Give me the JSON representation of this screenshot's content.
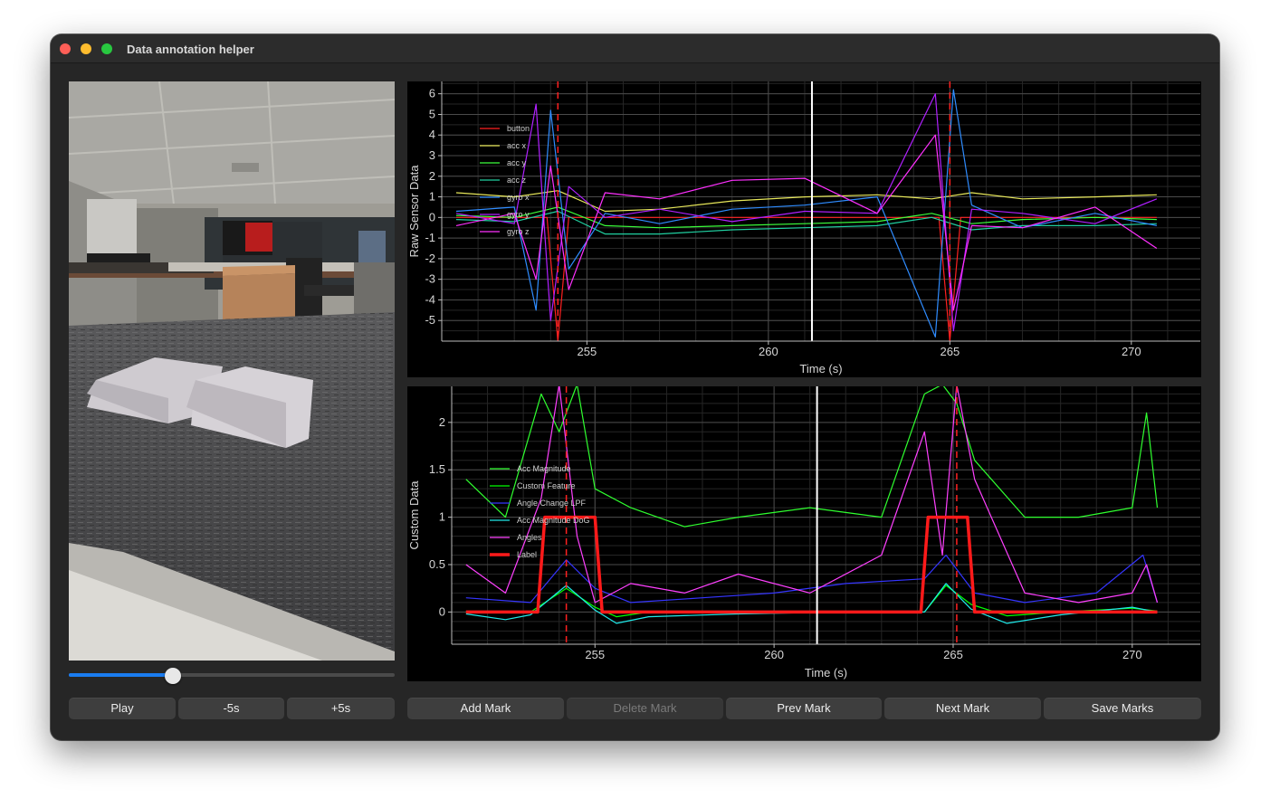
{
  "window": {
    "title": "Data annotation helper"
  },
  "video": {
    "progress": 0.32
  },
  "video_controls": {
    "play": "Play",
    "back": "-5s",
    "forward": "+5s"
  },
  "mark_controls": {
    "add": "Add Mark",
    "delete": "Delete Mark",
    "prev": "Prev Mark",
    "next": "Next Mark",
    "save": "Save Marks"
  },
  "colors": {
    "button": "#ff2020",
    "acc_x": "#e8e85a",
    "acc_y": "#3cff3c",
    "acc_z": "#20d0a0",
    "gyro_x": "#2f8cff",
    "gyro_y": "#b020ff",
    "gyro_z": "#ff30ff",
    "acc_mag": "#2fff2f",
    "custom": "#00ff00",
    "angle_lpf": "#3535ff",
    "acc_dog": "#20e8e8",
    "angles": "#ff40ff",
    "label": "#ff1a1a"
  },
  "chart_data": [
    {
      "type": "line",
      "title": "",
      "xlabel": "Time (s)",
      "ylabel": "Raw Sensor Data",
      "xlim": [
        251,
        271.9
      ],
      "ylim": [
        -6,
        6.6
      ],
      "xticks": [
        255,
        260,
        265,
        270
      ],
      "yticks": [
        6,
        5,
        4,
        3,
        2,
        1,
        0,
        -1,
        -2,
        -3,
        -4,
        -5
      ],
      "grid": true,
      "cursor_time": 261.2,
      "marks": [
        254.2,
        265.0
      ],
      "legend": {
        "position": "top-left",
        "entries": [
          "button",
          "acc x",
          "acc y",
          "acc z",
          "gyro x",
          "gyro y",
          "gyro z"
        ]
      },
      "series": [
        {
          "name": "button",
          "x": [
            251.4,
            253.9,
            254.2,
            254.5,
            264.7,
            265.0,
            265.3,
            270.7
          ],
          "y": [
            0,
            0,
            -6,
            0,
            0,
            -6,
            0,
            0
          ]
        },
        {
          "name": "acc x",
          "x": [
            251.4,
            253,
            254.2,
            255.5,
            257,
            259,
            261,
            263,
            264.5,
            265.6,
            267,
            269,
            270.7
          ],
          "y": [
            1.2,
            1.0,
            1.3,
            0.3,
            0.4,
            0.8,
            1.0,
            1.1,
            0.9,
            1.2,
            0.9,
            1.0,
            1.1
          ]
        },
        {
          "name": "acc y",
          "x": [
            251.4,
            253,
            254.2,
            255.5,
            257,
            259,
            261,
            263,
            264.5,
            265.6,
            267,
            269,
            270.7
          ],
          "y": [
            0.1,
            0.0,
            0.5,
            -0.4,
            -0.5,
            -0.4,
            -0.3,
            -0.2,
            0.2,
            -0.3,
            -0.1,
            0.0,
            -0.1
          ]
        },
        {
          "name": "acc z",
          "x": [
            251.4,
            253,
            254.2,
            255.5,
            257,
            259,
            261,
            263,
            264.5,
            265.6,
            267,
            269,
            270.7
          ],
          "y": [
            -0.1,
            -0.2,
            0.3,
            -0.8,
            -0.8,
            -0.6,
            -0.5,
            -0.4,
            0.0,
            -0.6,
            -0.4,
            -0.4,
            -0.3
          ]
        },
        {
          "name": "gyro x",
          "x": [
            251.4,
            253,
            253.6,
            254.0,
            254.5,
            255.5,
            257,
            259,
            261,
            263,
            264.6,
            265.1,
            265.6,
            267,
            269,
            270.7
          ],
          "y": [
            0.3,
            0.5,
            -4.5,
            5.2,
            -2.5,
            0.2,
            -0.3,
            0.4,
            0.6,
            1.0,
            -5.8,
            6.2,
            0.6,
            -0.5,
            0.2,
            -0.4
          ]
        },
        {
          "name": "gyro y",
          "x": [
            251.4,
            253,
            253.6,
            254.0,
            254.5,
            255.5,
            257,
            259,
            261,
            263,
            264.6,
            265.1,
            265.6,
            267,
            269,
            270.7
          ],
          "y": [
            0.2,
            -0.3,
            5.5,
            -5.0,
            1.5,
            0.0,
            0.4,
            -0.2,
            0.3,
            0.2,
            6.0,
            -5.5,
            0.4,
            0.2,
            -0.3,
            0.9
          ]
        },
        {
          "name": "gyro z",
          "x": [
            251.4,
            253,
            253.6,
            254.0,
            254.5,
            255.5,
            257,
            259,
            261,
            263,
            264.6,
            265.1,
            265.6,
            267,
            269,
            270.7
          ],
          "y": [
            -0.4,
            0.2,
            -3.0,
            2.5,
            -3.5,
            1.2,
            0.9,
            1.8,
            1.9,
            0.2,
            4.0,
            -4.5,
            -0.4,
            -0.5,
            0.5,
            -1.5
          ]
        }
      ]
    },
    {
      "type": "line",
      "title": "",
      "xlabel": "Time (s)",
      "ylabel": "Custom Data",
      "xlim": [
        251,
        271.9
      ],
      "ylim": [
        -0.34,
        2.38
      ],
      "xticks": [
        255,
        260,
        265,
        270
      ],
      "yticks": [
        2,
        1.5,
        1,
        0.5,
        0
      ],
      "grid": true,
      "cursor_time": 261.2,
      "marks": [
        254.2,
        265.1
      ],
      "legend": {
        "position": "top-left",
        "entries": [
          "Acc Magnitude",
          "Custom Feature",
          "Angle Change LPF",
          "Acc Magnitude DoG",
          "Angles",
          "Label"
        ]
      },
      "series": [
        {
          "name": "Acc Magnitude",
          "x": [
            251.4,
            252.5,
            253.5,
            254.0,
            254.5,
            255.0,
            256,
            257.5,
            259,
            261,
            263,
            264.2,
            264.7,
            265.1,
            265.6,
            267,
            268.5,
            270.0,
            270.4,
            270.7
          ],
          "y": [
            1.4,
            1.0,
            2.3,
            1.9,
            2.4,
            1.3,
            1.1,
            0.9,
            1.0,
            1.1,
            1.0,
            2.3,
            2.4,
            2.2,
            1.6,
            1.0,
            1.0,
            1.1,
            2.1,
            1.1
          ]
        },
        {
          "name": "Custom Feature",
          "x": [
            251.4,
            253.2,
            254.2,
            255.0,
            255.6,
            256.5,
            259,
            262,
            264.2,
            264.8,
            265.5,
            266.5,
            268,
            270,
            270.7
          ],
          "y": [
            0,
            0,
            0.25,
            0.05,
            -0.05,
            0,
            0,
            0,
            0,
            0.28,
            0.08,
            -0.04,
            0,
            0.04,
            0.01
          ]
        },
        {
          "name": "Angle Change LPF",
          "x": [
            251.4,
            253.2,
            254.2,
            255.0,
            256,
            258,
            260,
            262,
            264.2,
            264.8,
            265.6,
            267,
            269,
            270.3,
            270.7
          ],
          "y": [
            0.15,
            0.1,
            0.55,
            0.25,
            0.1,
            0.15,
            0.2,
            0.3,
            0.35,
            0.6,
            0.2,
            0.1,
            0.2,
            0.6,
            0.1
          ]
        },
        {
          "name": "Acc Magnitude DoG",
          "x": [
            251.4,
            252.5,
            253.2,
            254.2,
            255.0,
            255.6,
            256.5,
            259,
            262,
            264.2,
            264.8,
            265.5,
            266.5,
            268,
            270,
            270.7
          ],
          "y": [
            -0.02,
            -0.08,
            -0.03,
            0.28,
            0.02,
            -0.12,
            -0.05,
            -0.02,
            0,
            0,
            0.3,
            0.03,
            -0.12,
            -0.03,
            0.05,
            0
          ]
        },
        {
          "name": "Angles",
          "x": [
            251.4,
            252.5,
            253.5,
            254.0,
            254.5,
            255.0,
            256,
            257.5,
            259,
            261,
            263,
            264.2,
            264.7,
            265.1,
            265.6,
            267,
            268.5,
            270.0,
            270.4,
            270.7
          ],
          "y": [
            0.5,
            0.2,
            1.2,
            2.4,
            0.8,
            0.1,
            0.3,
            0.2,
            0.4,
            0.2,
            0.6,
            1.9,
            0.6,
            2.4,
            1.4,
            0.2,
            0.1,
            0.2,
            0.5,
            0.1
          ]
        },
        {
          "name": "Label",
          "x": [
            251.4,
            253.4,
            253.6,
            255.0,
            255.2,
            264.1,
            264.3,
            265.4,
            265.6,
            270.7
          ],
          "y": [
            0,
            0,
            1,
            1,
            0,
            0,
            1,
            1,
            0,
            0
          ]
        }
      ]
    }
  ]
}
